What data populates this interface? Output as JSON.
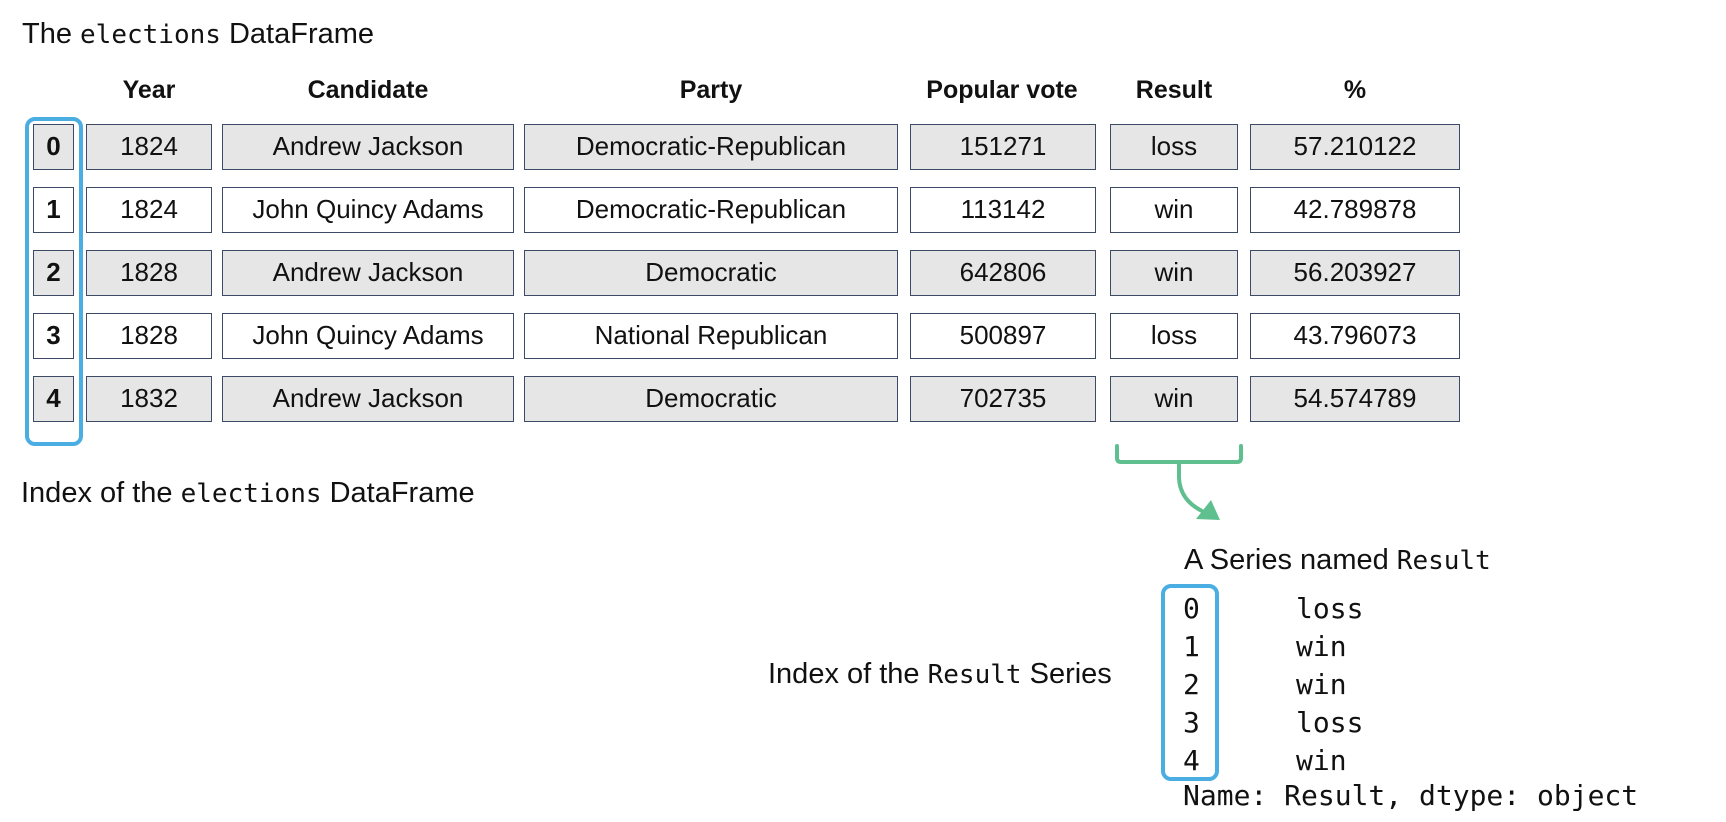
{
  "title": {
    "prefix": "The ",
    "code": "elections",
    "suffix": " DataFrame"
  },
  "columns": [
    "Year",
    "Candidate",
    "Party",
    "Popular vote",
    "Result",
    "%"
  ],
  "rows": [
    {
      "index": "0",
      "cells": [
        "1824",
        "Andrew Jackson",
        "Democratic-Republican",
        "151271",
        "loss",
        "57.210122"
      ]
    },
    {
      "index": "1",
      "cells": [
        "1824",
        "John Quincy Adams",
        "Democratic-Republican",
        "113142",
        "win",
        "42.789878"
      ]
    },
    {
      "index": "2",
      "cells": [
        "1828",
        "Andrew Jackson",
        "Democratic",
        "642806",
        "win",
        "56.203927"
      ]
    },
    {
      "index": "3",
      "cells": [
        "1828",
        "John Quincy Adams",
        "National Republican",
        "500897",
        "loss",
        "43.796073"
      ]
    },
    {
      "index": "4",
      "cells": [
        "1832",
        "Andrew Jackson",
        "Democratic",
        "702735",
        "win",
        "54.574789"
      ]
    }
  ],
  "df_index_label": {
    "prefix": "Index of the ",
    "code": "elections",
    "suffix": " DataFrame"
  },
  "series_title": {
    "prefix": "A Series named ",
    "code": "Result"
  },
  "series_index": [
    "0",
    "1",
    "2",
    "3",
    "4"
  ],
  "series_values": [
    "loss",
    "win",
    "win",
    "loss",
    "win"
  ],
  "series_footer": "Name: Result, dtype: object",
  "series_index_label": {
    "prefix": "Index of the ",
    "code": "Result",
    "suffix": " Series"
  },
  "colors": {
    "index_highlight": "#4aaee2",
    "bracket_arrow": "#5fbf8f",
    "shaded_cell": "#e6e6e6"
  }
}
